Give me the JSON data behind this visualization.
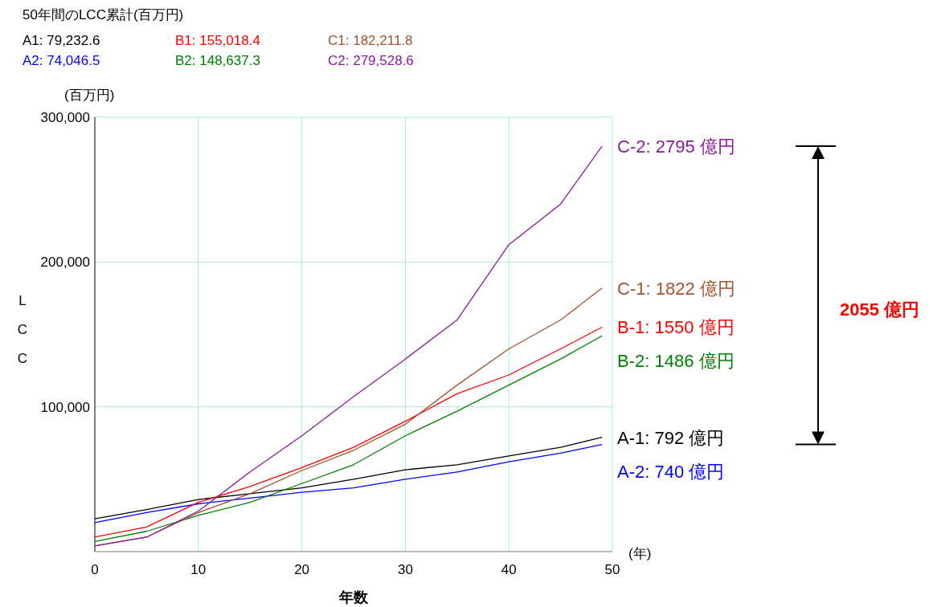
{
  "chart_data": {
    "type": "line",
    "title": "50年間のLCC累計(百万円)",
    "xlabel": "年数",
    "ylabel": "LCC",
    "x": [
      0,
      5,
      10,
      15,
      20,
      25,
      30,
      35,
      40,
      45,
      49
    ],
    "series": [
      {
        "name": "A-1:  792 億円",
        "color": "#000000",
        "values": [
          22700,
          29000,
          36000,
          40000,
          44000,
          50000,
          56500,
          60000,
          66000,
          72000,
          79000
        ]
      },
      {
        "name": "A-2:  740 億円",
        "color": "#0000ff",
        "values": [
          20000,
          27000,
          33000,
          37000,
          41000,
          44000,
          50000,
          55000,
          62000,
          68000,
          74000
        ]
      },
      {
        "name": "B-1:  1550 億円",
        "color": "#ff0000",
        "values": [
          10000,
          17000,
          34000,
          45000,
          58000,
          72000,
          90000,
          109000,
          122000,
          140000,
          155000
        ]
      },
      {
        "name": "B-2:  1486 億円",
        "color": "#008000",
        "values": [
          7000,
          14000,
          25000,
          34000,
          47000,
          60000,
          80000,
          97000,
          115000,
          133000,
          149000
        ]
      },
      {
        "name": "C-1:  1822 億円",
        "color": "#a0522d",
        "values": [
          4000,
          10000,
          27000,
          40000,
          56000,
          70000,
          88000,
          115000,
          140000,
          160000,
          182000
        ]
      },
      {
        "name": "C-2:  2795 億円",
        "color": "#8b1a9b",
        "values": [
          4000,
          10000,
          28000,
          55000,
          80000,
          107000,
          133000,
          160000,
          212000,
          240000,
          280000
        ]
      }
    ],
    "annotations": [
      "A1: 79,232.6",
      "A2: 74,046.5",
      "B1: 155,018.4",
      "B2: 148,637.3",
      "C1: 182,211.8",
      "C2: 279,528.6",
      "(百万円)",
      "(年)",
      "2055 億円"
    ],
    "xlim": [
      0,
      50
    ],
    "ylim": [
      0,
      300000
    ],
    "xticks": [
      0,
      10,
      20,
      30,
      40,
      50
    ],
    "yticks": [
      {
        "value": 0,
        "label": null
      },
      {
        "value": 100000,
        "label": "100,000"
      },
      {
        "value": 200000,
        "label": "200,000"
      },
      {
        "value": 300000,
        "label": "300,000"
      }
    ],
    "grid": true,
    "marker": "none",
    "line_style": "solid"
  }
}
